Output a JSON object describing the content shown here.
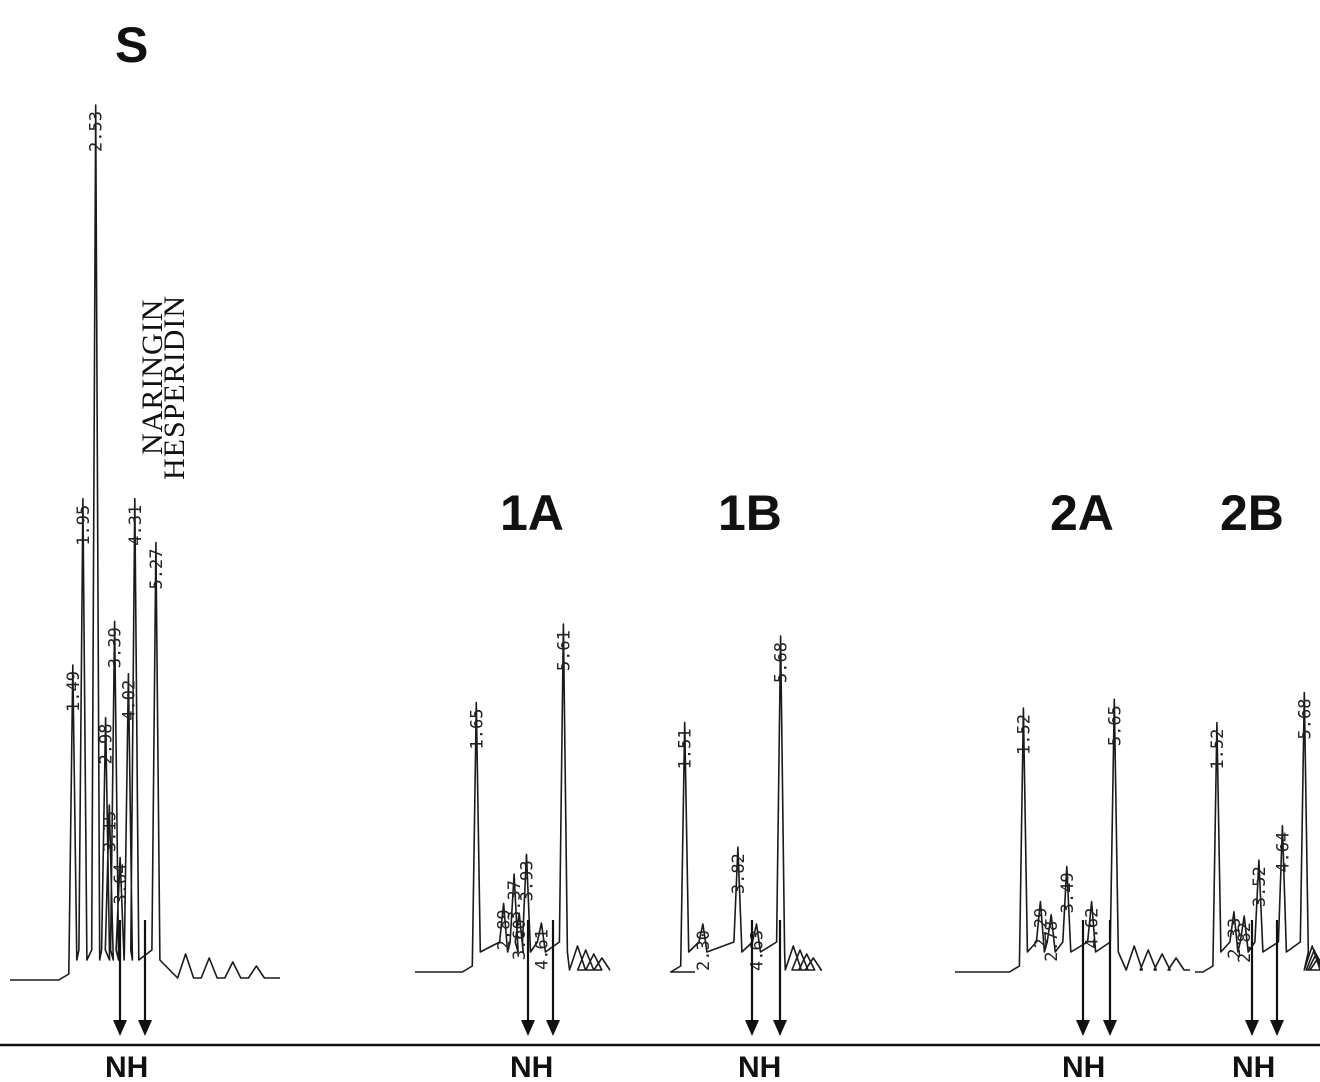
{
  "chart_data": {
    "type": "line",
    "title": "",
    "xlabel": "",
    "ylabel": "",
    "marker_label": "NH",
    "compounds": [
      "NARINGIN",
      "HESPERIDIN"
    ],
    "panels": [
      {
        "label": "S",
        "peaks": [
          {
            "rt": 1.49,
            "label": "1.49",
            "height": 0.36
          },
          {
            "rt": 1.95,
            "label": "1.95",
            "height": 0.55
          },
          {
            "rt": 2.53,
            "label": "2.53",
            "height": 1.0
          },
          {
            "rt": 2.98,
            "label": "2.98",
            "height": 0.3
          },
          {
            "rt": 3.15,
            "label": "3.15",
            "height": 0.2
          },
          {
            "rt": 3.39,
            "label": "3.39",
            "height": 0.41
          },
          {
            "rt": 3.64,
            "label": "3.64",
            "height": 0.14
          },
          {
            "rt": 4.02,
            "label": "4.02",
            "height": 0.35
          },
          {
            "rt": 4.31,
            "label": "4.31",
            "height": 0.55
          },
          {
            "rt": 5.27,
            "label": "5.27",
            "height": 0.5
          }
        ]
      },
      {
        "label": "1A",
        "peaks": [
          {
            "rt": 1.65,
            "label": "1.65",
            "height": 0.55
          },
          {
            "rt": 2.89,
            "label": "2.89",
            "height": 0.14
          },
          {
            "rt": 3.6,
            "label": "3.60",
            "height": 0.12
          },
          {
            "rt": 3.37,
            "label": "3.37",
            "height": 0.2
          },
          {
            "rt": 3.93,
            "label": "3.93",
            "height": 0.24
          },
          {
            "rt": 4.61,
            "label": "4.61",
            "height": 0.1
          },
          {
            "rt": 5.61,
            "label": "5.61",
            "height": 0.71
          }
        ]
      },
      {
        "label": "1B",
        "peaks": [
          {
            "rt": 1.51,
            "label": "1.51",
            "height": 0.52
          },
          {
            "rt": 2.3,
            "label": "2.30",
            "height": 0.1
          },
          {
            "rt": 3.82,
            "label": "3.82",
            "height": 0.26
          },
          {
            "rt": 4.63,
            "label": "4.63",
            "height": 0.1
          },
          {
            "rt": 5.68,
            "label": "5.68",
            "height": 0.7
          }
        ]
      },
      {
        "label": "2A",
        "peaks": [
          {
            "rt": 1.52,
            "label": "1.52",
            "height": 0.6
          },
          {
            "rt": 2.29,
            "label": "2.29",
            "height": 0.16
          },
          {
            "rt": 2.78,
            "label": "2.78",
            "height": 0.13
          },
          {
            "rt": 3.49,
            "label": "3.49",
            "height": 0.24
          },
          {
            "rt": 4.62,
            "label": "4.62",
            "height": 0.16
          },
          {
            "rt": 5.65,
            "label": "5.65",
            "height": 0.62
          }
        ]
      },
      {
        "label": "2B",
        "peaks": [
          {
            "rt": 1.52,
            "label": "1.52",
            "height": 0.58
          },
          {
            "rt": 2.33,
            "label": "2.33",
            "height": 0.14
          },
          {
            "rt": 2.82,
            "label": "2.82",
            "height": 0.13
          },
          {
            "rt": 3.52,
            "label": "3.52",
            "height": 0.26
          },
          {
            "rt": 4.64,
            "label": "4.64",
            "height": 0.34
          },
          {
            "rt": 5.68,
            "label": "5.68",
            "height": 0.65
          }
        ]
      }
    ]
  }
}
